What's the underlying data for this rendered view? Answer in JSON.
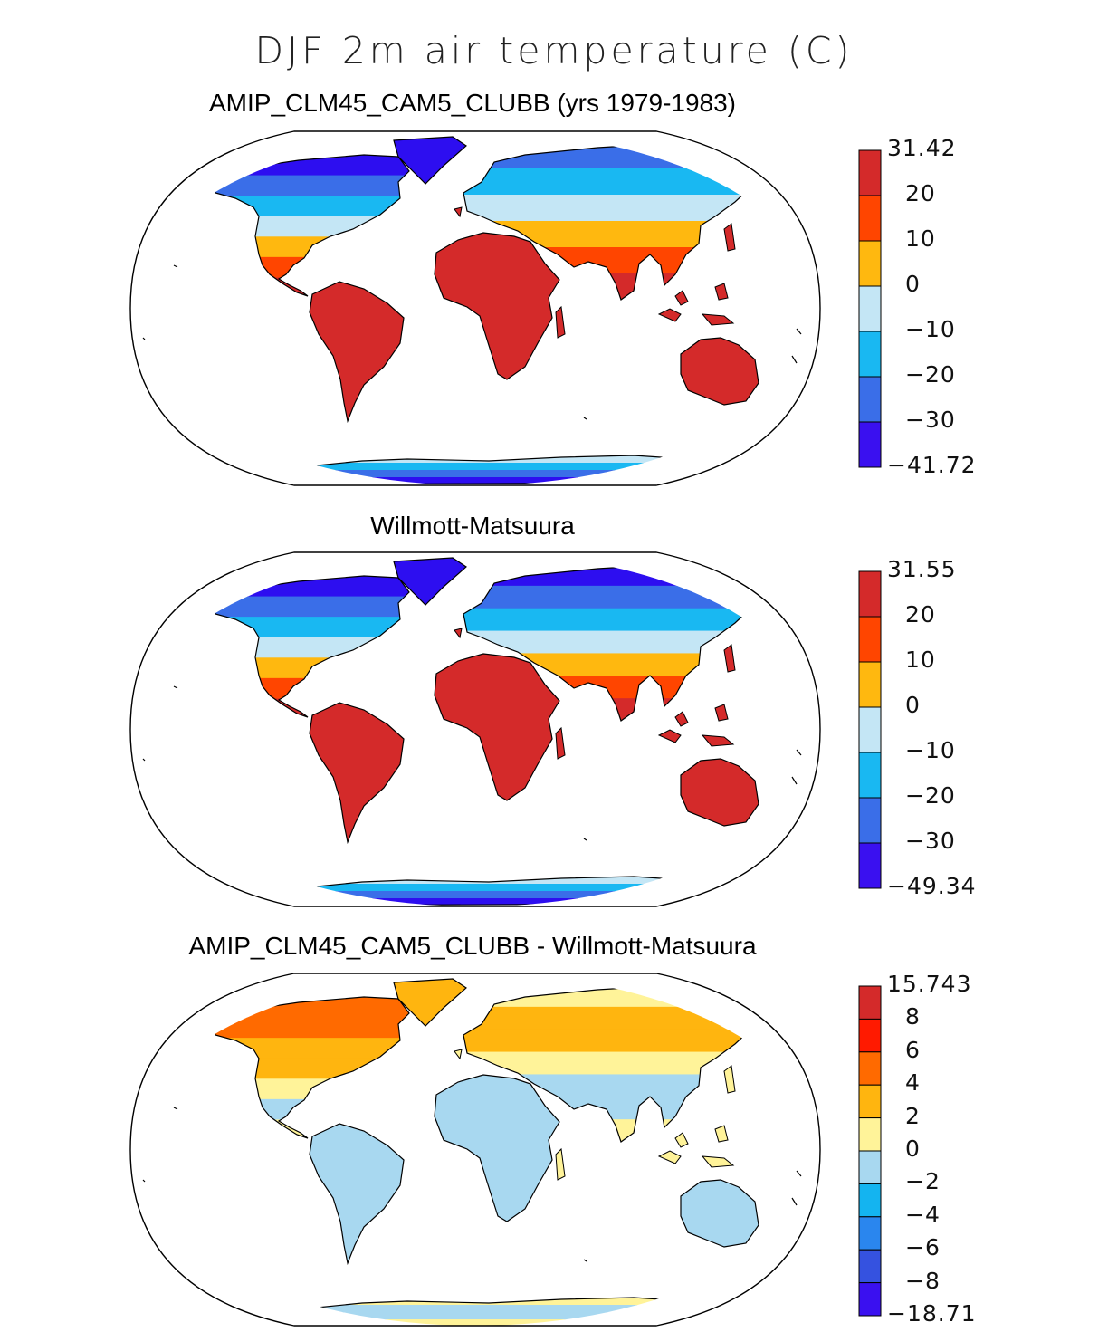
{
  "title": "DJF 2m air temperature (C)",
  "panels": [
    {
      "id": "model",
      "title": "AMIP_CLM45_CAM5_CLUBB (yrs 1979-1983)",
      "colorbar": {
        "labels": [
          "31.42",
          "20",
          "10",
          "0",
          "−10",
          "−20",
          "−30",
          "−41.72"
        ],
        "colors": [
          "#d42a2a",
          "#ff4500",
          "#ffb80f",
          "#c4e6f5",
          "#19b8f2",
          "#3a6ee8",
          "#3a10f0"
        ]
      },
      "zones": {
        "na": [
          "#2d0ef0",
          "#3a6ee8",
          "#19b8f2",
          "#c4e6f5",
          "#ffb80f",
          "#ff4500",
          "#d42a2a"
        ],
        "eu": [
          "#3a6ee8",
          "#19b8f2",
          "#c4e6f5",
          "#ffb80f",
          "#ff4500",
          "#d42a2a"
        ],
        "sa": "#d42a2a",
        "af": "#d42a2a",
        "au": "#d42a2a",
        "gr": "#2d0ef0",
        "ant": [
          "#c4e6f5",
          "#19b8f2",
          "#3a6ee8",
          "#2d0ef0"
        ]
      }
    },
    {
      "id": "obs",
      "title": "Willmott-Matsuura",
      "colorbar": {
        "labels": [
          "31.55",
          "20",
          "10",
          "0",
          "−10",
          "−20",
          "−30",
          "−49.34"
        ],
        "colors": [
          "#d42a2a",
          "#ff4500",
          "#ffb80f",
          "#c4e6f5",
          "#19b8f2",
          "#3a6ee8",
          "#3a10f0"
        ]
      },
      "zones": {
        "na": [
          "#2d0ef0",
          "#3a6ee8",
          "#19b8f2",
          "#c4e6f5",
          "#ffb80f",
          "#ff4500",
          "#d42a2a"
        ],
        "eu": [
          "#2d0ef0",
          "#3a6ee8",
          "#19b8f2",
          "#c4e6f5",
          "#ffb80f",
          "#ff4500",
          "#d42a2a"
        ],
        "sa": "#d42a2a",
        "af": "#d42a2a",
        "au": "#d42a2a",
        "gr": "#2d0ef0",
        "ant": [
          "#c4e6f5",
          "#19b8f2",
          "#3a6ee8",
          "#2d0ef0"
        ]
      }
    },
    {
      "id": "diff",
      "title": "AMIP_CLM45_CAM5_CLUBB - Willmott-Matsuura",
      "colorbar": {
        "labels": [
          "15.743",
          "8",
          "6",
          "4",
          "2",
          "0",
          "−2",
          "−4",
          "−6",
          "−8",
          "−18.71"
        ],
        "colors": [
          "#d42a2a",
          "#ff1a00",
          "#ff6a00",
          "#ffb50f",
          "#fff399",
          "#a8d8f0",
          "#14b4f0",
          "#2a86ee",
          "#3552e0",
          "#3a10f0"
        ]
      },
      "zones": {
        "na": [
          "#ff6a00",
          "#ff6a00",
          "#ffb50f",
          "#ffb50f",
          "#fff399",
          "#a8d8f0",
          "#fff399"
        ],
        "eu": [
          "#fff399",
          "#ffb50f",
          "#ffb50f",
          "#fff399",
          "#a8d8f0",
          "#a8d8f0",
          "#fff399"
        ],
        "sa": "#a8d8f0",
        "af": "#a8d8f0",
        "au": "#a8d8f0",
        "gr": "#ffb50f",
        "ant": [
          "#fff399",
          "#a8d8f0",
          "#a8d8f0",
          "#fff399"
        ]
      }
    }
  ]
}
